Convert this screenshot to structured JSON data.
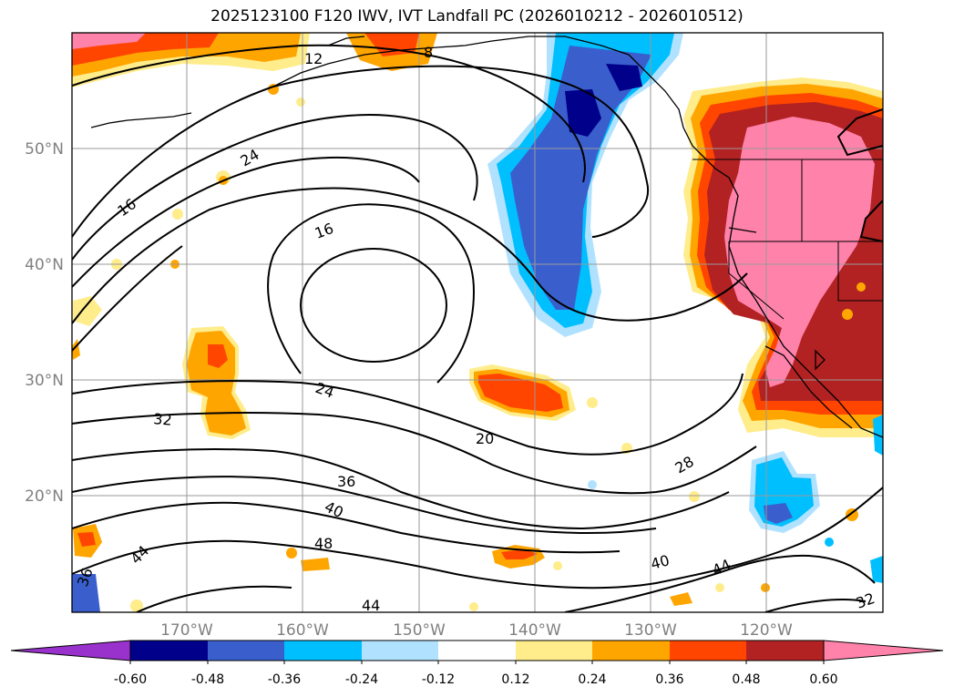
{
  "title": "2025123100 F120 IWV, IVT Landfall PC (2026010212 - 2026010512)",
  "map": {
    "lat_labels": [
      "50°N",
      "40°N",
      "30°N",
      "20°N"
    ],
    "lon_labels": [
      "170°W",
      "160°W",
      "150°W",
      "140°W",
      "130°W",
      "120°W"
    ]
  },
  "contours": {
    "labels": [
      "8",
      "12",
      "24",
      "16",
      "16",
      "24",
      "32",
      "20",
      "36",
      "40",
      "28",
      "48",
      "44",
      "40",
      "44",
      "32",
      "36",
      "44"
    ]
  },
  "colorbar": {
    "ticks": [
      "-0.60",
      "-0.48",
      "-0.36",
      "-0.24",
      "-0.12",
      "0.12",
      "0.24",
      "0.36",
      "0.48",
      "0.60"
    ],
    "colors": [
      "#9932cc",
      "#00008b",
      "#3a5fcd",
      "#00bfff",
      "#b0e2ff",
      "#ffffff",
      "#ffec8b",
      "#ffa500",
      "#ff4500",
      "#b22222",
      "#ff82ab"
    ]
  }
}
